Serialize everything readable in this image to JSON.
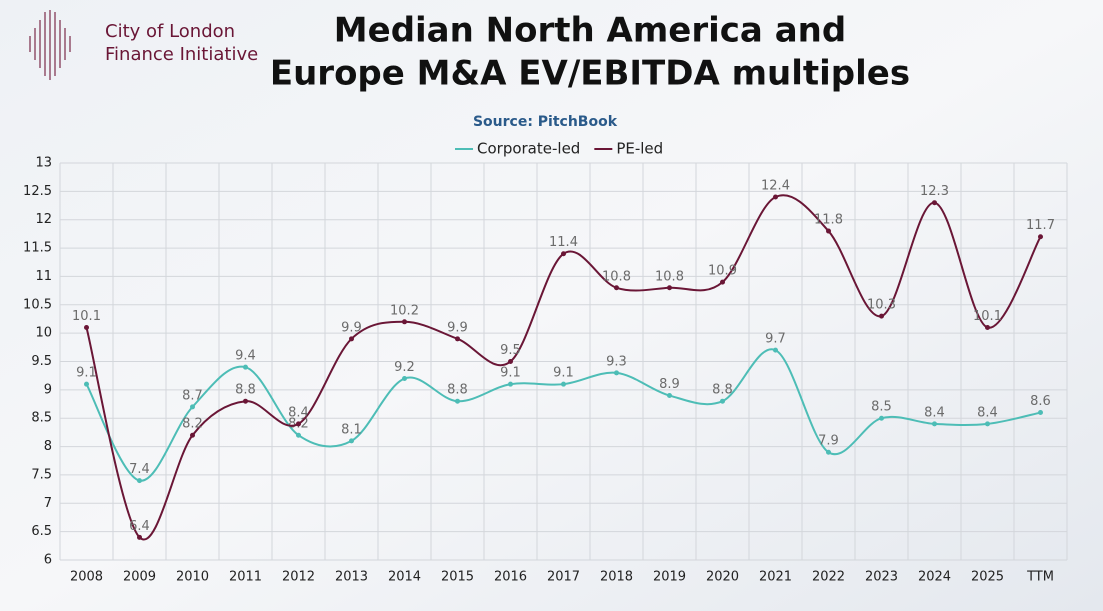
{
  "brand": [
    "City of London",
    "Finance Initiative"
  ],
  "chart_data": {
    "type": "line",
    "title": [
      "Median North America and",
      "Europe M&A EV/EBITDA multiples"
    ],
    "subtitle": "Source: PitchBook",
    "categories": [
      "2008",
      "2009",
      "2010",
      "2011",
      "2012",
      "2013",
      "2014",
      "2015",
      "2016",
      "2017",
      "2018",
      "2019",
      "2020",
      "2021",
      "2022",
      "2023",
      "2024",
      "2025",
      "TTM"
    ],
    "series": [
      {
        "name": "Corporate-led",
        "color": "#4dbdb6",
        "values": [
          9.1,
          7.4,
          8.7,
          9.4,
          8.2,
          8.1,
          9.2,
          8.8,
          9.1,
          9.1,
          9.3,
          8.9,
          8.8,
          9.7,
          7.9,
          8.5,
          8.4,
          8.4,
          8.6
        ]
      },
      {
        "name": "PE-led",
        "color": "#6a1636",
        "values": [
          10.1,
          6.4,
          8.2,
          8.8,
          8.4,
          9.9,
          10.2,
          9.9,
          9.5,
          11.4,
          10.8,
          10.8,
          10.9,
          12.4,
          11.8,
          10.3,
          12.3,
          10.1,
          11.7
        ]
      }
    ],
    "ylim": [
      6,
      13
    ],
    "yticks": [
      6,
      6.5,
      7,
      7.5,
      8,
      8.5,
      9,
      9.5,
      10,
      10.5,
      11,
      11.5,
      12,
      12.5,
      13
    ],
    "grid": true,
    "legend": "top"
  }
}
